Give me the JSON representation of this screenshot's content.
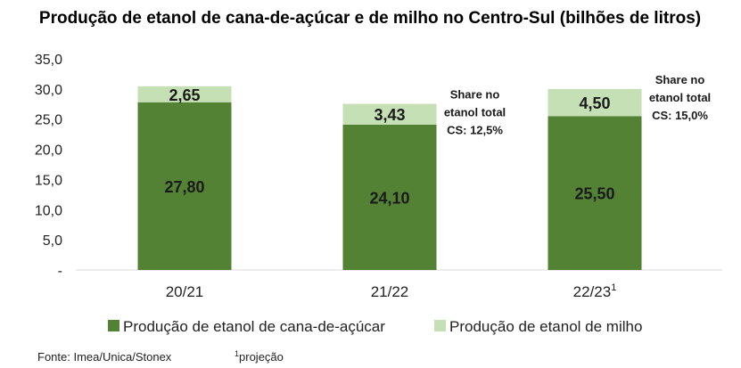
{
  "chart_data": {
    "type": "bar",
    "stacked": true,
    "title": "Produção de etanol de cana-de-açúcar e de milho no Centro-Sul (bilhões de litros)",
    "categories": [
      "20/21",
      "21/22",
      "22/23"
    ],
    "category_superscripts": [
      "",
      "",
      "1"
    ],
    "series": [
      {
        "name": "Produção de etanol de cana-de-açúcar",
        "values": [
          27.8,
          24.1,
          25.5
        ],
        "labels": [
          "27,80",
          "24,10",
          "25,50"
        ],
        "color": "#548235"
      },
      {
        "name": "Produção de etanol de milho",
        "values": [
          2.65,
          3.43,
          4.5
        ],
        "labels": [
          "2,65",
          "3,43",
          "4,50"
        ],
        "color": "#C5E0B4"
      }
    ],
    "y_ticks": [
      "-",
      "5,0",
      "10,0",
      "15,0",
      "20,0",
      "25,0",
      "30,0",
      "35,0"
    ],
    "ylim": [
      0,
      35
    ],
    "grid": false,
    "legend_position": "bottom",
    "annotations": [
      {
        "category_index": 1,
        "lines": [
          "Share no",
          "etanol total",
          "CS: 12,5%"
        ]
      },
      {
        "category_index": 2,
        "lines": [
          "Share no",
          "etanol total",
          "CS: 15,0%"
        ]
      }
    ],
    "source": "Fonte: Imea/Unica/Stonex",
    "footnote": "projeção",
    "footnote_marker": "1"
  }
}
